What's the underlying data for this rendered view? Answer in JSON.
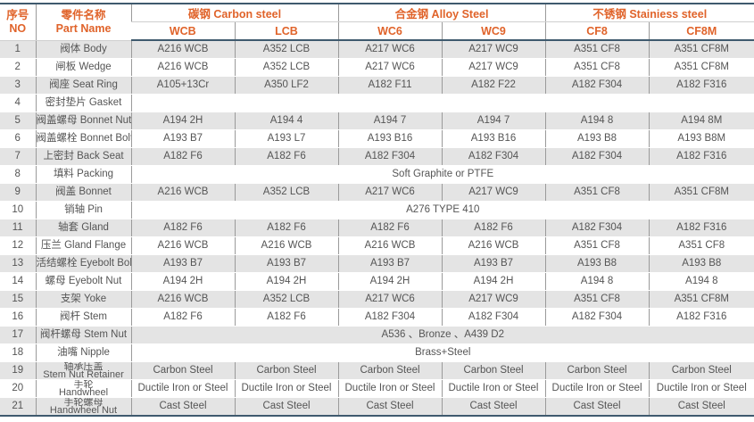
{
  "header": {
    "no_cn": "序号",
    "no_en": "NO",
    "name_cn": "零件名称",
    "name_en": "Part Name",
    "groups": [
      {
        "label": "碳钢 Carbon steel"
      },
      {
        "label": "合金钢 Alloy Steel"
      },
      {
        "label": "不锈钢 Stainiess steel"
      }
    ],
    "grades": [
      "WCB",
      "LCB",
      "WC6",
      "WC9",
      "CF8",
      "CF8M"
    ]
  },
  "rows": [
    {
      "no": "1",
      "name": "阀体 Body",
      "cells": [
        "A216 WCB",
        "A352 LCB",
        "A217 WC6",
        "A217 WC9",
        "A351 CF8",
        "A351 CF8M"
      ]
    },
    {
      "no": "2",
      "name": "闸板 Wedge",
      "cells": [
        "A216 WCB",
        "A352 LCB",
        "A217 WC6",
        "A217 WC9",
        "A351 CF8",
        "A351 CF8M"
      ]
    },
    {
      "no": "3",
      "name": "阀座 Seat Ring",
      "cells": [
        "A105+13Cr",
        "A350 LF2",
        "A182 F11",
        "A182 F22",
        "A182 F304",
        "A182 F316"
      ]
    },
    {
      "no": "4",
      "name": "密封垫片 Gasket",
      "cells": [
        ""
      ]
    },
    {
      "no": "5",
      "name": "阀盖螺母 Bonnet Nut",
      "cells": [
        "A194 2H",
        "A194 4",
        "A194 7",
        "A194 7",
        "A194 8",
        "A194 8M"
      ]
    },
    {
      "no": "6",
      "name": "阀盖螺栓 Bonnet Bolt",
      "cells": [
        "A193 B7",
        "A193 L7",
        "A193 B16",
        "A193 B16",
        "A193 B8",
        "A193 B8M"
      ]
    },
    {
      "no": "7",
      "name": "上密封 Back Seat",
      "cells": [
        "A182 F6",
        "A182 F6",
        "A182 F304",
        "A182 F304",
        "A182 F304",
        "A182 F316"
      ]
    },
    {
      "no": "8",
      "name": "填料 Packing",
      "cells": [
        "Soft Graphite or PTFE"
      ]
    },
    {
      "no": "9",
      "name": "阀盖 Bonnet",
      "cells": [
        "A216 WCB",
        "A352 LCB",
        "A217 WC6",
        "A217 WC9",
        "A351 CF8",
        "A351 CF8M"
      ]
    },
    {
      "no": "10",
      "name": "销轴 Pin",
      "cells": [
        "A276 TYPE 410"
      ]
    },
    {
      "no": "11",
      "name": "轴套 Gland",
      "cells": [
        "A182 F6",
        "A182 F6",
        "A182 F6",
        "A182 F6",
        "A182 F304",
        "A182 F316"
      ]
    },
    {
      "no": "12",
      "name": "压兰 Gland Flange",
      "cells": [
        "A216 WCB",
        "A216 WCB",
        "A216 WCB",
        "A216 WCB",
        "A351 CF8",
        "A351 CF8"
      ]
    },
    {
      "no": "13",
      "name": "活结螺栓 Eyebolt Bolt",
      "cells": [
        "A193 B7",
        "A193 B7",
        "A193 B7",
        "A193 B7",
        "A193 B8",
        "A193 B8"
      ]
    },
    {
      "no": "14",
      "name": "螺母 Eyebolt Nut",
      "cells": [
        "A194 2H",
        "A194 2H",
        "A194 2H",
        "A194 2H",
        "A194 8",
        "A194 8"
      ]
    },
    {
      "no": "15",
      "name": "支架 Yoke",
      "cells": [
        "A216 WCB",
        "A352 LCB",
        "A217 WC6",
        "A217 WC9",
        "A351 CF8",
        "A351 CF8M"
      ]
    },
    {
      "no": "16",
      "name": "阀杆 Stem",
      "cells": [
        "A182 F6",
        "A182 F6",
        "A182 F304",
        "A182 F304",
        "A182 F304",
        "A182 F316"
      ]
    },
    {
      "no": "17",
      "name": "阀杆螺母 Stem Nut",
      "cells": [
        "A536 、Bronze 、A439 D2"
      ]
    },
    {
      "no": "18",
      "name": "油嘴 Nipple",
      "cells": [
        "Brass+Steel"
      ]
    },
    {
      "no": "19",
      "name_cn": "轴承压盖",
      "name_en": "Stem Nut Retainer",
      "cells": [
        "Carbon Steel",
        "Carbon Steel",
        "Carbon Steel",
        "Carbon Steel",
        "Carbon Steel",
        "Carbon Steel"
      ]
    },
    {
      "no": "20",
      "name_cn": "手轮",
      "name_en": "Handwheel",
      "cells": [
        "Ductile Iron or Steel",
        "Ductile Iron or Steel",
        "Ductile Iron or Steel",
        "Ductile Iron or Steel",
        "Ductile Iron or Steel",
        "Ductile Iron or Steel"
      ]
    },
    {
      "no": "21",
      "name_cn": "手轮螺母",
      "name_en": "Handwheel Nut",
      "cells": [
        "Cast Steel",
        "Cast Steel",
        "Cast Steel",
        "Cast Steel",
        "Cast Steel",
        "Cast Steel"
      ]
    }
  ]
}
